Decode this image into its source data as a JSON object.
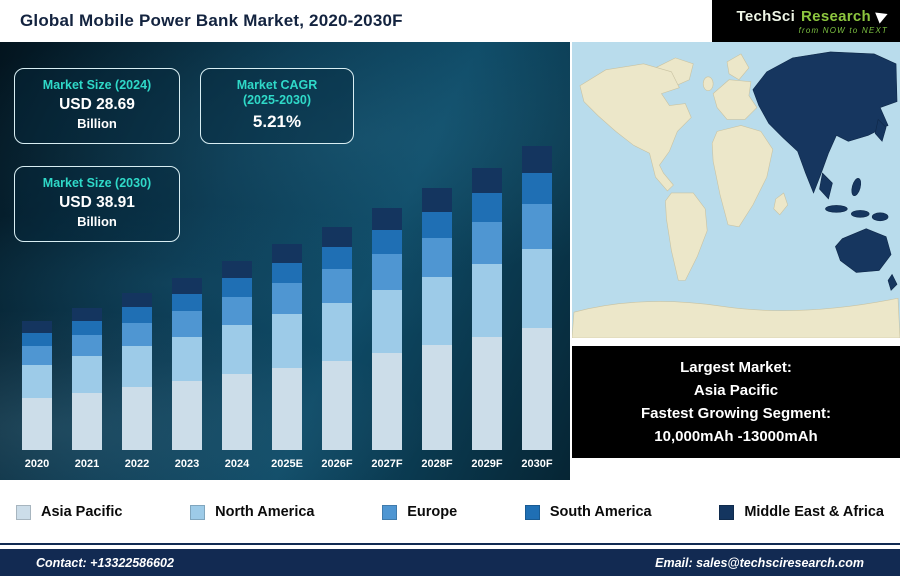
{
  "header": {
    "title": "Global Mobile Power Bank Market, 2020-2030F",
    "logo": {
      "name_part1": "TechSci",
      "name_part2": "Research",
      "tagline": "from NOW to NEXT"
    }
  },
  "info_boxes": {
    "box1": {
      "title": "Market Size (2024)",
      "value": "USD 28.69",
      "unit": "Billion"
    },
    "box2": {
      "title": "Market CAGR",
      "subtitle": "(2025-2030)",
      "value": "5.21%"
    },
    "box3": {
      "title": "Market Size (2030)",
      "value": "USD 38.91",
      "unit": "Billion"
    }
  },
  "chart_data": {
    "type": "bar",
    "stacked": true,
    "title": "Global Mobile Power Bank Market, 2020-2030F",
    "unit": "USD Billion",
    "legend_position": "bottom",
    "categories": [
      "2020",
      "2021",
      "2022",
      "2023",
      "2024",
      "2025E",
      "2026F",
      "2027F",
      "2028F",
      "2029F",
      "2030F"
    ],
    "series": [
      {
        "name": "Asia Pacific",
        "color": "#ccdde9",
        "values": [
          9.36,
          9.84,
          10.36,
          10.88,
          11.48,
          12.07,
          12.7,
          13.36,
          14.06,
          14.79,
          15.56
        ]
      },
      {
        "name": "North America",
        "color": "#9dcbe8",
        "values": [
          6.08,
          6.4,
          6.73,
          7.07,
          7.46,
          7.85,
          8.26,
          8.69,
          9.14,
          9.61,
          10.12
        ]
      },
      {
        "name": "Europe",
        "color": "#4f96d2",
        "values": [
          3.51,
          3.69,
          3.89,
          4.08,
          4.3,
          4.53,
          4.76,
          5.01,
          5.27,
          5.55,
          5.84
        ]
      },
      {
        "name": "South America",
        "color": "#1f6fb4",
        "values": [
          2.34,
          2.46,
          2.59,
          2.72,
          2.87,
          3.02,
          3.18,
          3.34,
          3.52,
          3.7,
          3.89
        ]
      },
      {
        "name": "Middle East & Africa",
        "color": "#14355f",
        "values": [
          2.11,
          2.21,
          2.33,
          2.45,
          2.58,
          2.72,
          2.86,
          3.01,
          3.16,
          3.33,
          3.5
        ]
      }
    ],
    "totals": [
      23.4,
      24.6,
      25.9,
      27.2,
      28.69,
      30.18,
      31.76,
      33.41,
      35.15,
      36.98,
      38.91
    ]
  },
  "map_panel": {
    "lines": [
      "Largest Market:",
      "Asia Pacific",
      "Fastest Growing Segment:",
      "10,000mAh -13000mAh"
    ],
    "highlight_color": "#16365f",
    "land_color": "#ece7c9",
    "ocean_color": "#b9dcec"
  },
  "footer": {
    "contact": "Contact: +13322586602",
    "email": "Email: sales@techsciresearch.com"
  }
}
